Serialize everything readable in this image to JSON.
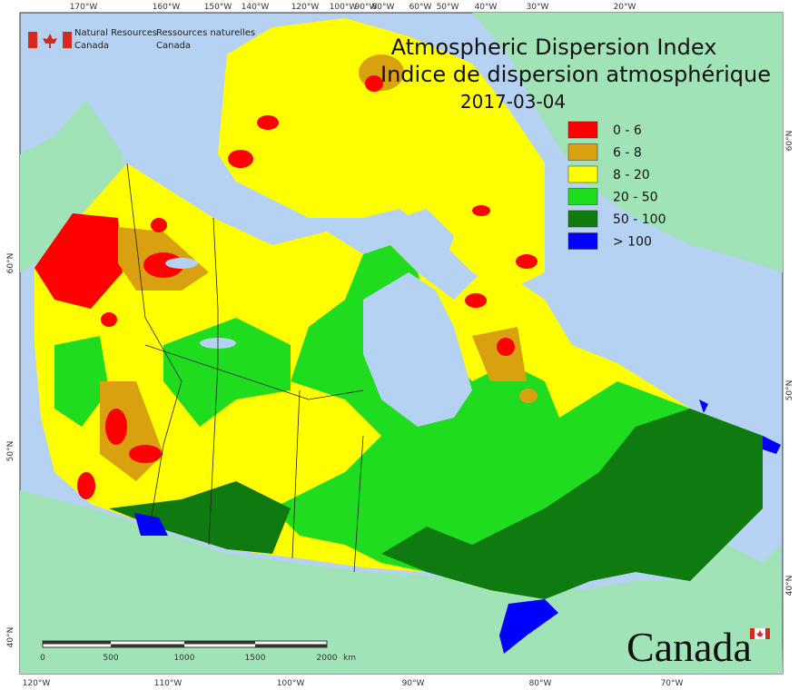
{
  "header": {
    "agency_en": [
      "Natural Resources",
      "Canada"
    ],
    "agency_fr": [
      "Ressources naturelles",
      "Canada"
    ]
  },
  "title": {
    "en": "Atmospheric Dispersion Index",
    "fr": "Indice de dispersion atmosphérique",
    "date": "2017-03-04"
  },
  "legend": [
    {
      "label": "0 - 6",
      "color": "#ff0000"
    },
    {
      "label": "6 - 8",
      "color": "#d9a00f"
    },
    {
      "label": "8 - 20",
      "color": "#ffff00"
    },
    {
      "label": "20 - 50",
      "color": "#1fdc1f"
    },
    {
      "label": "50 - 100",
      "color": "#0f7a0f"
    },
    {
      "label": "> 100",
      "color": "#0000ff"
    }
  ],
  "graticule": {
    "top": [
      "170°W",
      "160°W",
      "150°W",
      "140°W",
      "120°W",
      "100°W",
      "90°W",
      "80°W",
      "60°W",
      "50°W",
      "40°W",
      "30°W",
      "20°W"
    ],
    "bottom": [
      "120°W",
      "110°W",
      "100°W",
      "90°W",
      "80°W",
      "70°W"
    ],
    "left": [
      "60°N",
      "50°N",
      "40°N"
    ],
    "right": [
      "60°N",
      "50°N",
      "40°N"
    ]
  },
  "scale_bar": {
    "labels": [
      "0",
      "500",
      "1000",
      "1500",
      "2000"
    ],
    "unit": "km"
  },
  "wordmark": "Canada"
}
